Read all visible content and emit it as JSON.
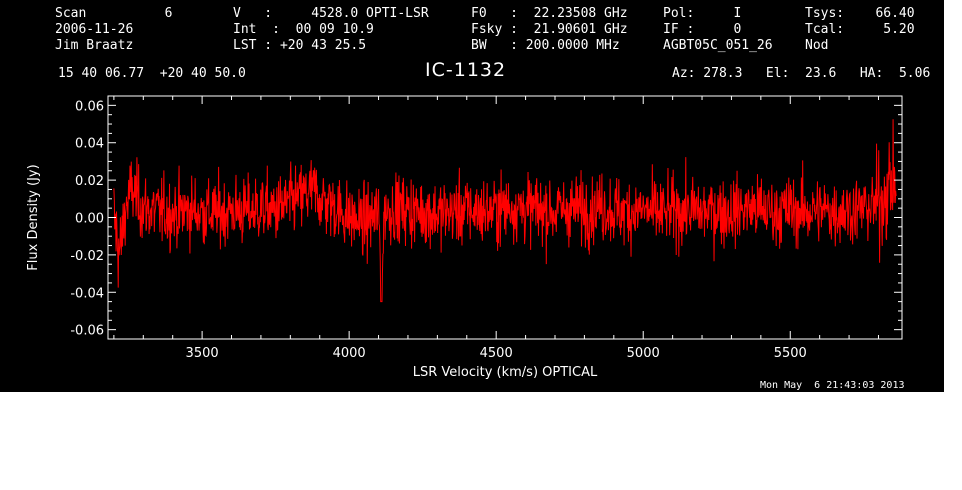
{
  "header": {
    "col1": [
      "Scan          6",
      "2006-11-26",
      "Jim Braatz",
      "15 40 06.77  +20 40 50.0"
    ],
    "col2": [
      "V   :     4528.0 OPTI-LSR",
      "Int  :  00 09 10.9",
      "LST : +20 43 25.5"
    ],
    "col3": [
      "F0   :  22.23508 GHz",
      "Fsky :  21.90601 GHz",
      "BW   : 200.0000 MHz"
    ],
    "col4": [
      "Pol:     I",
      "IF :     0",
      "AGBT05C_051_26"
    ],
    "col5": [
      "Tsys:    66.40",
      "Tcal:     5.20",
      "Nod"
    ],
    "object": "IC-1132",
    "pointing": "Az: 278.3   El:  23.6   HA:  5.06"
  },
  "timestamp": "Mon May  6 21:43:03 2013",
  "colors": {
    "background": "#000000",
    "axes": "#ffffff",
    "trace": "#ff0000"
  },
  "chart_data": {
    "type": "line",
    "xlabel": "LSR Velocity (km/s) OPTICAL",
    "ylabel": "Flux Density (Jy)",
    "xlim": [
      3180,
      5880
    ],
    "ylim": [
      -0.065,
      0.065
    ],
    "xticks": [
      3500,
      4000,
      4500,
      5000,
      5500
    ],
    "yticks": [
      -0.06,
      -0.04,
      -0.02,
      0.0,
      0.02,
      0.04,
      0.06
    ],
    "ytick_labels": [
      "-0.06",
      "-0.04",
      "-0.02",
      "0.00",
      "0.02",
      "0.04",
      "0.06"
    ],
    "grid": false,
    "legend": "none",
    "series": [
      {
        "x": [
          3200,
          3220,
          3240,
          3260,
          3280,
          3300,
          3350,
          3400,
          3450,
          3500,
          3550,
          3600,
          3650,
          3700,
          3750,
          3800,
          3850,
          3880,
          3900,
          3950,
          4000,
          4050,
          4100,
          4110,
          4120,
          4150,
          4200,
          4250,
          4300,
          4350,
          4400,
          4450,
          4500,
          4550,
          4600,
          4650,
          4700,
          4750,
          4800,
          4850,
          4900,
          4950,
          5000,
          5050,
          5100,
          5150,
          5200,
          5250,
          5300,
          5350,
          5400,
          5450,
          5500,
          5550,
          5600,
          5650,
          5700,
          5750,
          5780,
          5800,
          5820,
          5840,
          5860
        ],
        "y": [
          0.0,
          -0.02,
          0.005,
          0.015,
          0.01,
          0.005,
          0.003,
          0.002,
          0.004,
          0.003,
          0.002,
          0.004,
          0.003,
          0.005,
          0.004,
          0.008,
          0.012,
          0.015,
          0.01,
          0.006,
          0.0,
          -0.003,
          0.002,
          -0.035,
          0.003,
          0.005,
          0.004,
          0.003,
          0.002,
          0.003,
          0.004,
          0.003,
          0.004,
          0.006,
          0.005,
          0.004,
          0.003,
          0.005,
          0.004,
          0.006,
          0.004,
          0.003,
          0.004,
          0.002,
          0.003,
          0.004,
          0.003,
          0.004,
          0.003,
          0.005,
          0.004,
          0.003,
          0.004,
          0.003,
          0.004,
          0.003,
          0.004,
          0.005,
          0.006,
          0.008,
          0.012,
          0.018,
          0.02
        ],
        "noise_rms": 0.009
      }
    ]
  }
}
